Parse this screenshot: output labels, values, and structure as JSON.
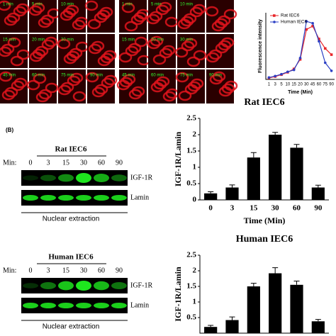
{
  "panel_label": "(B)",
  "micrographs": {
    "rows": [
      [
        "1 min",
        "5 min",
        "10 min",
        null,
        "1 min",
        "5 min",
        "10 min",
        null
      ],
      [
        "15 min",
        "20 min",
        "30 min",
        null,
        "15 min",
        "20 min",
        "30 min",
        null
      ],
      [
        "45 min",
        "60 min",
        "75 min",
        "90 min",
        "45 min",
        "60 min",
        "75 min",
        "90 min"
      ]
    ]
  },
  "blots": [
    {
      "title": "Rat IEC6",
      "min_label": "Min:",
      "lanes": [
        "0",
        "3",
        "15",
        "30",
        "60",
        "90"
      ],
      "rows": [
        "IGF-1R",
        "Lamin"
      ],
      "footer": "Nuclear extraction"
    },
    {
      "title": "Human IEC6",
      "min_label": "Min:",
      "lanes": [
        "0",
        "3",
        "15",
        "30",
        "60",
        "90"
      ],
      "rows": [
        "IGF-1R",
        "Lamin"
      ],
      "footer": "Nuclear extraction"
    }
  ],
  "chart_data": [
    {
      "type": "line",
      "x_label": "Time (Min)",
      "y_label": "Fluorescence intensity",
      "categories": [
        "1",
        "3",
        "5",
        "10",
        "15",
        "20",
        "30",
        "45",
        "60",
        "75",
        "90"
      ],
      "ylim": [
        0,
        140
      ],
      "series": [
        {
          "name": "Rat IEC6",
          "color": "#e8262a",
          "values": [
            3,
            6,
            10,
            15,
            22,
            42,
            105,
            112,
            85,
            65,
            52
          ]
        },
        {
          "name": "Human IEC6",
          "color": "#2b3fc4",
          "values": [
            4,
            7,
            11,
            16,
            20,
            45,
            122,
            118,
            80,
            35,
            18
          ]
        }
      ]
    },
    {
      "type": "bar",
      "title": "Rat IEC6",
      "x_label": "Time (Min)",
      "y_label": "IGF-1R/Lamin",
      "color": "#000000",
      "categories": [
        "0",
        "3",
        "15",
        "30",
        "60",
        "90"
      ],
      "values": [
        0.2,
        0.38,
        1.3,
        2.0,
        1.6,
        0.38
      ],
      "errors": [
        0.05,
        0.08,
        0.15,
        0.07,
        0.1,
        0.07
      ],
      "ylim": [
        0,
        2.5
      ],
      "yticks": [
        0,
        0.5,
        1,
        1.5,
        2,
        2.5
      ]
    },
    {
      "type": "bar",
      "title": "Human IEC6",
      "y_label": "IGF-1R/Lamin",
      "color": "#000000",
      "values": [
        0.2,
        0.42,
        1.5,
        1.92,
        1.55,
        0.38
      ],
      "errors": [
        0.05,
        0.1,
        0.1,
        0.18,
        0.12,
        0.06
      ],
      "ylim": [
        0,
        2.5
      ],
      "yticks": [
        0.5,
        1,
        1.5,
        2,
        2.5
      ]
    }
  ]
}
